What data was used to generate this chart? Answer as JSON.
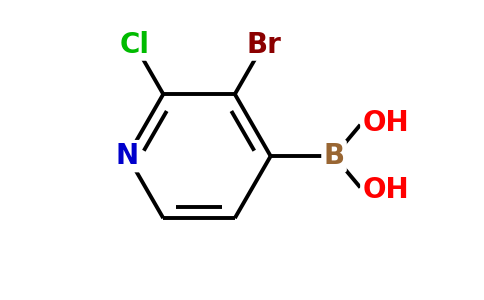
{
  "background_color": "#ffffff",
  "atom_colors": {
    "N": "#0000cc",
    "Cl": "#00bb00",
    "Br": "#8b0000",
    "B": "#996633",
    "O": "#ff0000"
  },
  "bond_color": "#000000",
  "bond_width": 2.8,
  "font_size": 20
}
